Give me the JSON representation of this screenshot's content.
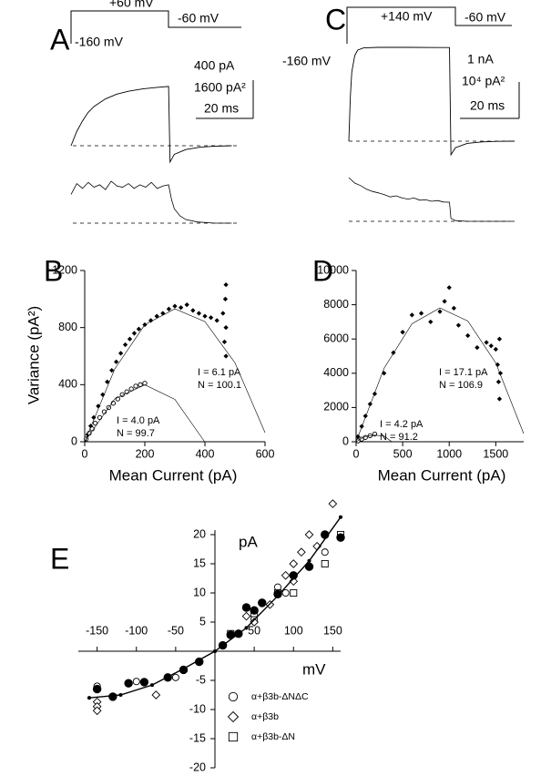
{
  "chart_data": [
    {
      "type": "trace",
      "panel": "A",
      "protocol_labels": [
        "+60 mV",
        "-160 mV",
        "-60 mV"
      ],
      "scale_labels": [
        "400 pA",
        "1600 pA²",
        "20 ms"
      ],
      "current": {
        "x": [
          0,
          2,
          4,
          6,
          8,
          12,
          16,
          20,
          25,
          30,
          34,
          34.5,
          36,
          40,
          45,
          50,
          56
        ],
        "values": [
          0,
          150,
          260,
          350,
          410,
          490,
          540,
          570,
          595,
          610,
          620,
          -170,
          -90,
          -40,
          -15,
          -5,
          0
        ]
      },
      "variance": {
        "x": [
          0,
          2,
          4,
          6,
          8,
          10,
          12,
          14,
          16,
          18,
          20,
          22,
          24,
          26,
          28,
          30,
          32,
          34,
          35,
          36,
          38,
          40,
          44,
          50,
          56
        ],
        "values": [
          1200,
          1650,
          1450,
          1700,
          1500,
          1600,
          1400,
          1750,
          1550,
          1500,
          1650,
          1450,
          1600,
          1500,
          1700,
          1450,
          1550,
          1600,
          1000,
          600,
          300,
          150,
          50,
          0,
          0
        ]
      }
    },
    {
      "type": "scatter",
      "panel": "B",
      "x_label": "Mean Current (pA)",
      "y_label": "Variance (pA²)",
      "xlim": [
        0,
        600
      ],
      "ylim": [
        0,
        1200
      ],
      "xticks": [
        0,
        200,
        400,
        600
      ],
      "yticks": [
        0,
        400,
        800,
        1200
      ],
      "annotations": [
        "I = 6.1 pA",
        "N = 100.1",
        "I = 4.0 pA",
        "N = 99.7"
      ],
      "series": [
        {
          "marker": "diamond",
          "filled": true,
          "color": "#000000",
          "x": [
            10,
            20,
            30,
            45,
            60,
            75,
            90,
            105,
            120,
            135,
            150,
            165,
            180,
            200,
            220,
            240,
            260,
            280,
            300,
            320,
            340,
            360,
            380,
            400,
            420,
            440,
            460,
            465,
            468,
            470,
            470,
            470
          ],
          "values": [
            50,
            110,
            170,
            250,
            330,
            420,
            500,
            560,
            620,
            680,
            720,
            760,
            790,
            820,
            850,
            880,
            900,
            930,
            950,
            940,
            960,
            920,
            900,
            880,
            870,
            850,
            900,
            700,
            1000,
            600,
            1100,
            800
          ]
        },
        {
          "marker": "circle",
          "filled": false,
          "color": "#000000",
          "x": [
            5,
            15,
            25,
            35,
            50,
            65,
            80,
            95,
            110,
            125,
            140,
            155,
            170,
            185,
            200
          ],
          "values": [
            20,
            60,
            90,
            130,
            170,
            210,
            240,
            270,
            300,
            330,
            350,
            370,
            390,
            400,
            410
          ]
        },
        {
          "line": true,
          "color": "#000000",
          "x": [
            0,
            100,
            200,
            300,
            400,
            500,
            600
          ],
          "values": [
            0,
            510,
            820,
            931,
            842,
            553,
            64
          ]
        },
        {
          "line": true,
          "color": "#000000",
          "x": [
            0,
            100,
            200,
            300,
            399
          ],
          "values": [
            0,
            300,
            399,
            297,
            0
          ]
        }
      ]
    },
    {
      "type": "trace",
      "panel": "C",
      "protocol_labels": [
        "+140 mV",
        "-160 mV",
        "-60 mV"
      ],
      "scale_labels": [
        "1 nA",
        "10⁴ pA²",
        "20 ms"
      ],
      "current": {
        "x": [
          0,
          0.5,
          1,
          2,
          3,
          5,
          10,
          20,
          30,
          34,
          34.5,
          36,
          40,
          45,
          50,
          56
        ],
        "values": [
          0,
          1200,
          1900,
          2350,
          2500,
          2560,
          2575,
          2575,
          2570,
          2570,
          -375,
          -180,
          -60,
          -20,
          -5,
          0
        ]
      },
      "variance": {
        "x": [
          0,
          2,
          4,
          6,
          8,
          10,
          12,
          14,
          16,
          18,
          20,
          22,
          24,
          26,
          28,
          30,
          32,
          34,
          34.5,
          36,
          40,
          50,
          56
        ],
        "values": [
          12000,
          10500,
          9800,
          8800,
          8200,
          7800,
          7300,
          6700,
          7000,
          6400,
          6100,
          6400,
          5800,
          5900,
          5500,
          5700,
          5300,
          5250,
          800,
          200,
          0,
          0,
          0
        ]
      }
    },
    {
      "type": "scatter",
      "panel": "D",
      "x_label": "Mean Current (pA)",
      "xlim": [
        0,
        1800
      ],
      "ylim": [
        0,
        10000
      ],
      "xticks": [
        0,
        500,
        1000,
        1500
      ],
      "yticks": [
        0,
        2000,
        4000,
        6000,
        8000,
        10000
      ],
      "annotations": [
        "I = 17.1 pA",
        "N = 106.9",
        "I = 4.2 pA",
        "N = 91.2"
      ],
      "series": [
        {
          "marker": "diamond",
          "filled": true,
          "color": "#000000",
          "x": [
            20,
            60,
            100,
            150,
            200,
            300,
            400,
            500,
            600,
            700,
            800,
            900,
            950,
            1000,
            1050,
            1100,
            1200,
            1300,
            1400,
            1450,
            1500,
            1520,
            1530,
            1540,
            1540,
            1550
          ],
          "values": [
            300,
            900,
            1500,
            2200,
            2800,
            4000,
            5200,
            6400,
            7400,
            7500,
            7000,
            7600,
            8200,
            9000,
            7800,
            6800,
            6200,
            5500,
            5800,
            5600,
            5400,
            4500,
            3500,
            2500,
            6000,
            4000
          ]
        },
        {
          "marker": "circle",
          "filled": false,
          "color": "#000000",
          "x": [
            20,
            60,
            100,
            150,
            200
          ],
          "values": [
            50,
            150,
            250,
            350,
            450
          ]
        },
        {
          "line": true,
          "color": "#000000",
          "x": [
            0,
            300,
            600,
            900,
            1200,
            1500,
            1800
          ],
          "values": [
            0,
            4288,
            6892,
            7813,
            7050,
            4602,
            471
          ]
        },
        {
          "line": true,
          "color": "#000000",
          "x": [
            0,
            100,
            200,
            300,
            383
          ],
          "values": [
            0,
            310,
            381,
            335,
            0
          ]
        }
      ]
    },
    {
      "type": "iv",
      "panel": "E",
      "x_label": "mV",
      "y_label": "pA",
      "xlim": [
        -160,
        160
      ],
      "ylim": [
        -20,
        20
      ],
      "xticks": [
        -150,
        -100,
        -50,
        50,
        100,
        150
      ],
      "yticks": [
        -20,
        -15,
        -10,
        -5,
        5,
        10,
        15,
        20
      ],
      "series": [
        {
          "name": "α+β3b-ΔNΔC",
          "marker": "circle",
          "filled": false,
          "color": "#000000",
          "x": [
            -150,
            -100,
            -50,
            50,
            80,
            90,
            140,
            160
          ],
          "values": [
            -6,
            -5.2,
            -4.5,
            5.5,
            11,
            10,
            17,
            19.5
          ]
        },
        {
          "name": "α+β3b",
          "marker": "diamond",
          "filled": false,
          "color": "#000000",
          "x": [
            -150,
            -150,
            -150,
            -75,
            40,
            50,
            70,
            90,
            100,
            110,
            120,
            130,
            150,
            100
          ],
          "values": [
            -8.7,
            -9.5,
            -10.2,
            -7.5,
            6,
            5,
            8,
            13,
            15,
            17,
            20,
            18,
            25.3,
            12
          ]
        },
        {
          "name": "α+β3b-ΔN",
          "marker": "square",
          "filled": false,
          "color": "#000000",
          "x": [
            20,
            50,
            80,
            100,
            140,
            160
          ],
          "values": [
            3,
            6.5,
            10,
            10,
            15,
            20
          ]
        },
        {
          "marker": "circle",
          "filled": true,
          "color": "#000000",
          "x": [
            -150,
            -130,
            -110,
            -90,
            -60,
            -40,
            -20,
            10,
            20,
            30,
            40,
            50,
            60,
            80,
            100,
            120,
            140,
            160
          ],
          "values": [
            -6.5,
            -7.8,
            -5.5,
            -5.3,
            -4.5,
            -3.2,
            -1.8,
            1,
            2.8,
            3,
            7.5,
            7,
            8.3,
            9.8,
            13,
            14.5,
            20,
            19.5
          ]
        },
        {
          "line": true,
          "marker": "dot",
          "color": "#000000",
          "x": [
            -160,
            -120,
            -80,
            -40,
            0,
            40,
            80,
            120,
            160
          ],
          "values": [
            -8,
            -7.5,
            -5.8,
            -3,
            0,
            4,
            9.5,
            15.5,
            23
          ]
        }
      ]
    }
  ]
}
